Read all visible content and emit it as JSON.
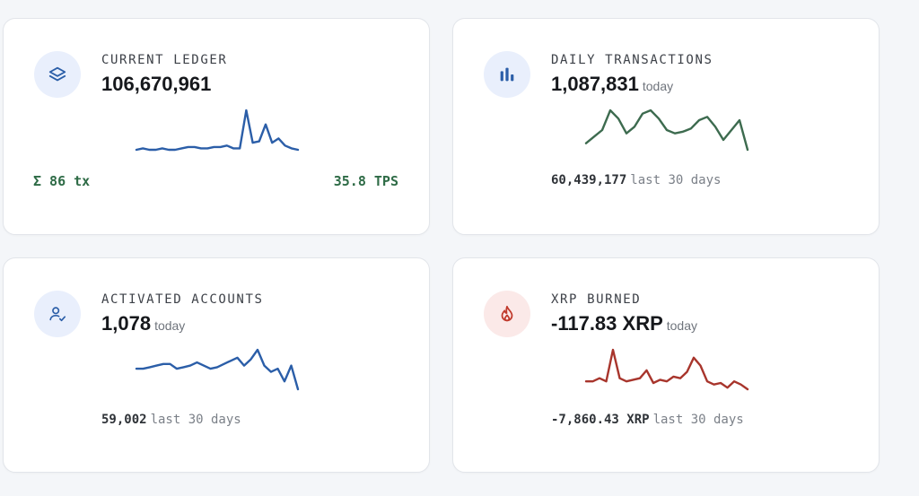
{
  "cards": {
    "ledger": {
      "label": "CURRENT LEDGER",
      "value": "106,670,961",
      "tx": "Σ 86 tx",
      "tps": "35.8 TPS",
      "icon": "layers-icon",
      "color": "#2b5ea8",
      "series": [
        2,
        3,
        2,
        2,
        3,
        2,
        2,
        3,
        4,
        4,
        3,
        3,
        4,
        4,
        5,
        3,
        3,
        30,
        7,
        8,
        20,
        7,
        10,
        5,
        3,
        2
      ]
    },
    "daily": {
      "label": "DAILY TRANSACTIONS",
      "value": "1,087,831",
      "suffix": "today",
      "total": "60,439,177",
      "total_suffix": "last 30 days",
      "icon": "bar-chart-icon",
      "color": "#3d6b4f",
      "series": [
        10,
        14,
        18,
        30,
        25,
        16,
        20,
        28,
        30,
        25,
        18,
        16,
        17,
        19,
        24,
        26,
        20,
        12,
        18,
        24,
        6
      ]
    },
    "accounts": {
      "label": "ACTIVATED ACCOUNTS",
      "value": "1,078",
      "suffix": "today",
      "total": "59,002",
      "total_suffix": "last 30 days",
      "icon": "user-check-icon",
      "color": "#2b5ea8",
      "series": [
        18,
        18,
        19,
        20,
        21,
        21,
        18,
        19,
        20,
        22,
        20,
        18,
        19,
        21,
        23,
        25,
        20,
        24,
        30,
        20,
        16,
        18,
        10,
        20,
        5
      ]
    },
    "burned": {
      "label": "XRP BURNED",
      "value": "-117.83 XRP",
      "suffix": "today",
      "total": "-7,860.43 XRP",
      "total_suffix": "last 30 days",
      "icon": "flame-icon",
      "color": "#a8352c",
      "series": [
        10,
        10,
        12,
        10,
        30,
        12,
        10,
        11,
        12,
        17,
        9,
        11,
        10,
        13,
        12,
        16,
        25,
        20,
        10,
        8,
        9,
        6,
        10,
        8,
        5
      ]
    }
  }
}
